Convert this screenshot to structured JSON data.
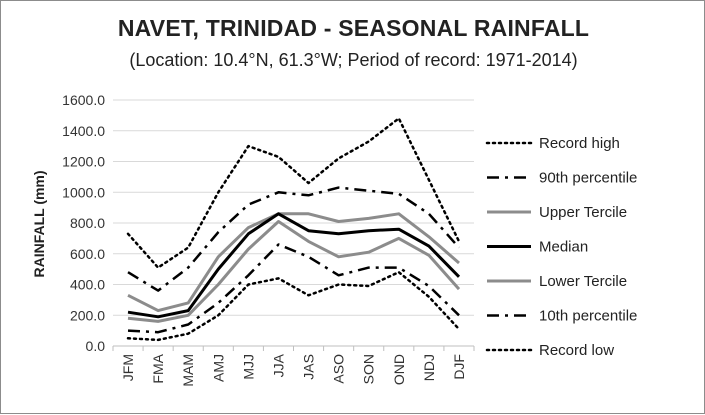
{
  "chart_data": {
    "type": "line",
    "title": "NAVET, TRINIDAD - SEASONAL RAINFALL",
    "subtitle": "(Location: 10.4°N, 61.3°W; Period of record: 1971-2014)",
    "ylabel": "RAINFALL (mm)",
    "xlabel": "",
    "ylim": [
      0,
      1600
    ],
    "y_ticks": [
      "0.0",
      "200.0",
      "400.0",
      "600.0",
      "800.0",
      "1000.0",
      "1200.0",
      "1400.0",
      "1600.0"
    ],
    "grid": "horizontal",
    "legend_position": "right",
    "categories": [
      "JFM",
      "FMA",
      "MAM",
      "AMJ",
      "MJJ",
      "JJA",
      "JAS",
      "ASO",
      "SON",
      "OND",
      "NDJ",
      "DJF"
    ],
    "series": [
      {
        "name": "Record high",
        "color": "#000000",
        "style": "dotted",
        "values": [
          730,
          510,
          640,
          1000,
          1300,
          1230,
          1060,
          1220,
          1330,
          1480,
          1080,
          680
        ]
      },
      {
        "name": "90th percentile",
        "color": "#000000",
        "style": "dashdot",
        "values": [
          480,
          360,
          510,
          740,
          920,
          1000,
          980,
          1030,
          1010,
          990,
          860,
          640
        ]
      },
      {
        "name": "Upper Tercile",
        "color": "#8c8c8c",
        "style": "solid",
        "values": [
          330,
          230,
          280,
          580,
          770,
          860,
          860,
          810,
          830,
          860,
          710,
          540
        ]
      },
      {
        "name": "Median",
        "color": "#000000",
        "style": "solid",
        "values": [
          220,
          190,
          230,
          500,
          730,
          860,
          750,
          730,
          750,
          760,
          650,
          450
        ]
      },
      {
        "name": "Lower Tercile",
        "color": "#8c8c8c",
        "style": "solid",
        "values": [
          180,
          160,
          200,
          400,
          630,
          810,
          680,
          580,
          610,
          700,
          590,
          370
        ]
      },
      {
        "name": "10th percentile",
        "color": "#000000",
        "style": "dashdot",
        "values": [
          100,
          90,
          140,
          280,
          460,
          660,
          580,
          460,
          510,
          510,
          390,
          200
        ]
      },
      {
        "name": "Record low",
        "color": "#000000",
        "style": "dotted",
        "values": [
          50,
          40,
          80,
          200,
          400,
          440,
          330,
          400,
          390,
          480,
          320,
          110
        ]
      }
    ]
  }
}
